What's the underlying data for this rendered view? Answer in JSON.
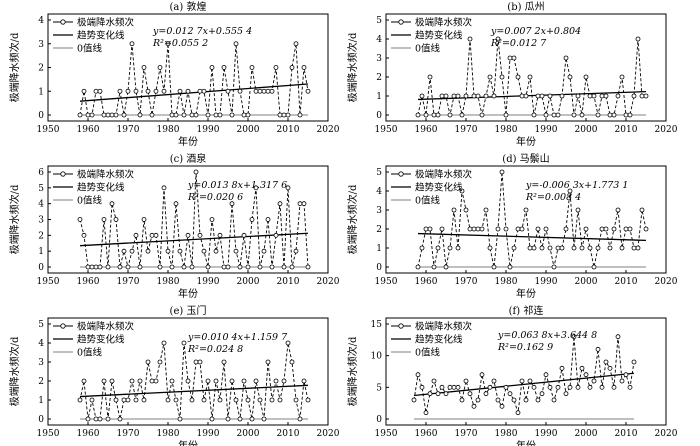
{
  "x_axis_label": "年份",
  "y_axis_label": "极端降水频次/d",
  "legend": {
    "observed": "极端降水频次",
    "trend": "趋势变化线",
    "zero": "0值线"
  },
  "x_ticks": [
    "1950",
    "1960",
    "1970",
    "1980",
    "1990",
    "2000",
    "2010",
    "2020"
  ],
  "chart_data": [
    {
      "type": "line",
      "title": "(a) 敦煌",
      "equation": "y=0.012 7x+0.555 4",
      "r2": "R²=0.055 2",
      "xlim": [
        1950,
        2020
      ],
      "ylim": [
        0,
        4
      ],
      "y_ticks": [
        "0",
        "1",
        "2",
        "3",
        "4"
      ],
      "series": [
        {
          "name": "极端降水频次",
          "x": [
            1958,
            1959,
            1960,
            1961,
            1962,
            1963,
            1964,
            1965,
            1966,
            1967,
            1968,
            1969,
            1970,
            1971,
            1972,
            1973,
            1974,
            1975,
            1976,
            1977,
            1978,
            1979,
            1980,
            1981,
            1982,
            1983,
            1984,
            1985,
            1986,
            1987,
            1988,
            1989,
            1990,
            1991,
            1992,
            1993,
            1994,
            1995,
            1996,
            1997,
            1998,
            1999,
            2000,
            2001,
            2002,
            2003,
            2004,
            2005,
            2006,
            2007,
            2008,
            2009,
            2010,
            2011,
            2012,
            2013,
            2014,
            2015
          ],
          "values": [
            0,
            1,
            0,
            0,
            1,
            1,
            0,
            0,
            0,
            0,
            1,
            0,
            1,
            3,
            1,
            0,
            2,
            1,
            0,
            1,
            2,
            1,
            3,
            0,
            0,
            1,
            0,
            1,
            0,
            0,
            1,
            1,
            0,
            2,
            0,
            0,
            2,
            1,
            0,
            3,
            1,
            0,
            0,
            2,
            1,
            1,
            1,
            1,
            1,
            2,
            0,
            0,
            0,
            2,
            3,
            0,
            2,
            1
          ]
        }
      ],
      "trend": {
        "slope": 0.0127,
        "intercept": 0.5554,
        "x0": 1958,
        "x_origin": 1957,
        "x1": 2015
      }
    },
    {
      "type": "line",
      "title": "(b) 瓜州",
      "equation": "y=0.007 2x+0.804",
      "r2": "R²=0.012 7",
      "xlim": [
        1950,
        2020
      ],
      "ylim": [
        0,
        5
      ],
      "y_ticks": [
        "0",
        "1",
        "2",
        "3",
        "4",
        "5"
      ],
      "series": [
        {
          "name": "极端降水频次",
          "x": [
            1958,
            1959,
            1960,
            1961,
            1962,
            1963,
            1964,
            1965,
            1966,
            1967,
            1968,
            1969,
            1970,
            1971,
            1972,
            1973,
            1974,
            1975,
            1976,
            1977,
            1978,
            1979,
            1980,
            1981,
            1982,
            1983,
            1984,
            1985,
            1986,
            1987,
            1988,
            1989,
            1990,
            1991,
            1992,
            1993,
            1994,
            1995,
            1996,
            1997,
            1998,
            1999,
            2000,
            2001,
            2002,
            2003,
            2004,
            2005,
            2006,
            2007,
            2008,
            2009,
            2010,
            2011,
            2012,
            2013,
            2014,
            2015
          ],
          "values": [
            0,
            1,
            0,
            2,
            0,
            0,
            1,
            1,
            0,
            1,
            1,
            0,
            1,
            4,
            1,
            1,
            0,
            1,
            2,
            1,
            4,
            2,
            0,
            3,
            3,
            2,
            1,
            1,
            2,
            0,
            1,
            1,
            0,
            1,
            0,
            0,
            1,
            3,
            2,
            0,
            1,
            0,
            2,
            1,
            1,
            0,
            1,
            1,
            0,
            0,
            1,
            2,
            0,
            0,
            1,
            4,
            1,
            1
          ]
        }
      ],
      "trend": {
        "slope": 0.0072,
        "intercept": 0.804,
        "x0": 1958,
        "x_origin": 1957,
        "x1": 2015
      }
    },
    {
      "type": "line",
      "title": "(c) 酒泉",
      "equation": "y=0.013 8x+1.317 6",
      "r2": "R²=0.020 6",
      "xlim": [
        1950,
        2020
      ],
      "ylim": [
        0,
        6
      ],
      "y_ticks": [
        "0",
        "1",
        "2",
        "3",
        "4",
        "5",
        "6"
      ],
      "series": [
        {
          "name": "极端降水频次",
          "x": [
            1958,
            1959,
            1960,
            1961,
            1962,
            1963,
            1964,
            1965,
            1966,
            1967,
            1968,
            1969,
            1970,
            1971,
            1972,
            1973,
            1974,
            1975,
            1976,
            1977,
            1978,
            1979,
            1980,
            1981,
            1982,
            1983,
            1984,
            1985,
            1986,
            1987,
            1988,
            1989,
            1990,
            1991,
            1992,
            1993,
            1994,
            1995,
            1996,
            1997,
            1998,
            1999,
            2000,
            2001,
            2002,
            2003,
            2004,
            2005,
            2006,
            2007,
            2008,
            2009,
            2010,
            2011,
            2012,
            2013,
            2014,
            2015
          ],
          "values": [
            3,
            2,
            0,
            0,
            0,
            0,
            3,
            0,
            4,
            3,
            0,
            1,
            0,
            1,
            2,
            0,
            3,
            1,
            2,
            2,
            0,
            5,
            1,
            0,
            4,
            1,
            0,
            2,
            0,
            6,
            2,
            1,
            0,
            3,
            1,
            2,
            0,
            0,
            4,
            1,
            0,
            2,
            0,
            3,
            5,
            0,
            1,
            3,
            0,
            2,
            4,
            0,
            5,
            0,
            1,
            4,
            4,
            0
          ]
        }
      ],
      "trend": {
        "slope": 0.0138,
        "intercept": 1.3176,
        "x0": 1958,
        "x_origin": 1957,
        "x1": 2015
      }
    },
    {
      "type": "line",
      "title": "(d) 马鬃山",
      "equation": "y=-0.006 3x+1.773 1",
      "r2": "R²=0.008 4",
      "xlim": [
        1950,
        2020
      ],
      "ylim": [
        0,
        5
      ],
      "y_ticks": [
        "0",
        "1",
        "2",
        "3",
        "4",
        "5"
      ],
      "series": [
        {
          "name": "极端降水频次",
          "x": [
            1958,
            1959,
            1960,
            1961,
            1962,
            1963,
            1964,
            1965,
            1966,
            1967,
            1968,
            1969,
            1970,
            1971,
            1972,
            1973,
            1974,
            1975,
            1976,
            1977,
            1978,
            1979,
            1980,
            1981,
            1982,
            1983,
            1984,
            1985,
            1986,
            1987,
            1988,
            1989,
            1990,
            1991,
            1992,
            1993,
            1994,
            1995,
            1996,
            1997,
            1998,
            1999,
            2000,
            2001,
            2002,
            2003,
            2004,
            2005,
            2006,
            2007,
            2008,
            2009,
            2010,
            2011,
            2012,
            2013,
            2014,
            2015
          ],
          "values": [
            0,
            1,
            2,
            2,
            0,
            1,
            2,
            0,
            1,
            3,
            1,
            4,
            3,
            2,
            2,
            2,
            2,
            3,
            1,
            0,
            2,
            5,
            2,
            0,
            1,
            2,
            2,
            3,
            1,
            1,
            2,
            1,
            2,
            1,
            0,
            1,
            1,
            2,
            4,
            1,
            3,
            1,
            2,
            1,
            0,
            1,
            2,
            2,
            1,
            2,
            3,
            1,
            2,
            2,
            1,
            1,
            3,
            2
          ]
        }
      ],
      "trend": {
        "slope": -0.0063,
        "intercept": 1.7731,
        "x0": 1958,
        "x_origin": 1957,
        "x1": 2015
      }
    },
    {
      "type": "line",
      "title": "(e) 玉门",
      "equation": "y=0.010 4x+1.159 7",
      "r2": "R²=0.024 8",
      "xlim": [
        1950,
        2020
      ],
      "ylim": [
        0,
        5
      ],
      "y_ticks": [
        "0",
        "1",
        "2",
        "3",
        "4",
        "5"
      ],
      "series": [
        {
          "name": "极端降水频次",
          "x": [
            1958,
            1959,
            1960,
            1961,
            1962,
            1963,
            1964,
            1965,
            1966,
            1967,
            1968,
            1969,
            1970,
            1971,
            1972,
            1973,
            1974,
            1975,
            1976,
            1977,
            1978,
            1979,
            1980,
            1981,
            1982,
            1983,
            1984,
            1985,
            1986,
            1987,
            1988,
            1989,
            1990,
            1991,
            1992,
            1993,
            1994,
            1995,
            1996,
            1997,
            1998,
            1999,
            2000,
            2001,
            2002,
            2003,
            2004,
            2005,
            2006,
            2007,
            2008,
            2009,
            2010,
            2011,
            2012,
            2013,
            2014,
            2015
          ],
          "values": [
            1,
            2,
            0,
            1,
            0,
            0,
            2,
            0,
            2,
            1,
            0,
            1,
            1,
            2,
            1,
            2,
            1,
            3,
            2,
            2,
            3,
            4,
            1,
            2,
            1,
            0,
            4,
            2,
            1,
            3,
            3,
            1,
            2,
            0,
            2,
            1,
            3,
            0,
            2,
            1,
            0,
            2,
            1,
            0,
            2,
            1,
            0,
            3,
            1,
            2,
            1,
            2,
            4,
            3,
            1,
            0,
            2,
            1
          ]
        }
      ],
      "trend": {
        "slope": 0.0104,
        "intercept": 1.1597,
        "x0": 1958,
        "x_origin": 1957,
        "x1": 2015
      }
    },
    {
      "type": "line",
      "title": "(f) 祁连",
      "equation": "y=0.063 8x+3.644 8",
      "r2": "R²=0.162 9",
      "xlim": [
        1950,
        2020
      ],
      "ylim": [
        0,
        15
      ],
      "y_ticks": [
        "0",
        "5",
        "10",
        "15"
      ],
      "series": [
        {
          "name": "极端降水频次",
          "x": [
            1957,
            1958,
            1959,
            1960,
            1961,
            1962,
            1963,
            1964,
            1965,
            1966,
            1967,
            1968,
            1969,
            1970,
            1971,
            1972,
            1973,
            1974,
            1975,
            1976,
            1977,
            1978,
            1979,
            1980,
            1981,
            1982,
            1983,
            1984,
            1985,
            1986,
            1987,
            1988,
            1989,
            1990,
            1991,
            1992,
            1993,
            1994,
            1995,
            1996,
            1997,
            1998,
            1999,
            2000,
            2001,
            2002,
            2003,
            2004,
            2005,
            2006,
            2007,
            2008,
            2009,
            2010,
            2011,
            2012
          ],
          "values": [
            3,
            7,
            5,
            1,
            4,
            6,
            4,
            5,
            4,
            5,
            5,
            5,
            3,
            6,
            4,
            2,
            3,
            7,
            4,
            5,
            6,
            3,
            2,
            5,
            4,
            3,
            1,
            6,
            3,
            6,
            5,
            3,
            4,
            7,
            5,
            3,
            5,
            8,
            4,
            5,
            13,
            5,
            8,
            7,
            5,
            6,
            11,
            5,
            9,
            8,
            5,
            13,
            6,
            7,
            5,
            9
          ]
        }
      ],
      "trend": {
        "slope": 0.0638,
        "intercept": 3.6448,
        "x0": 1957,
        "x_origin": 1957,
        "x1": 2012
      }
    }
  ]
}
